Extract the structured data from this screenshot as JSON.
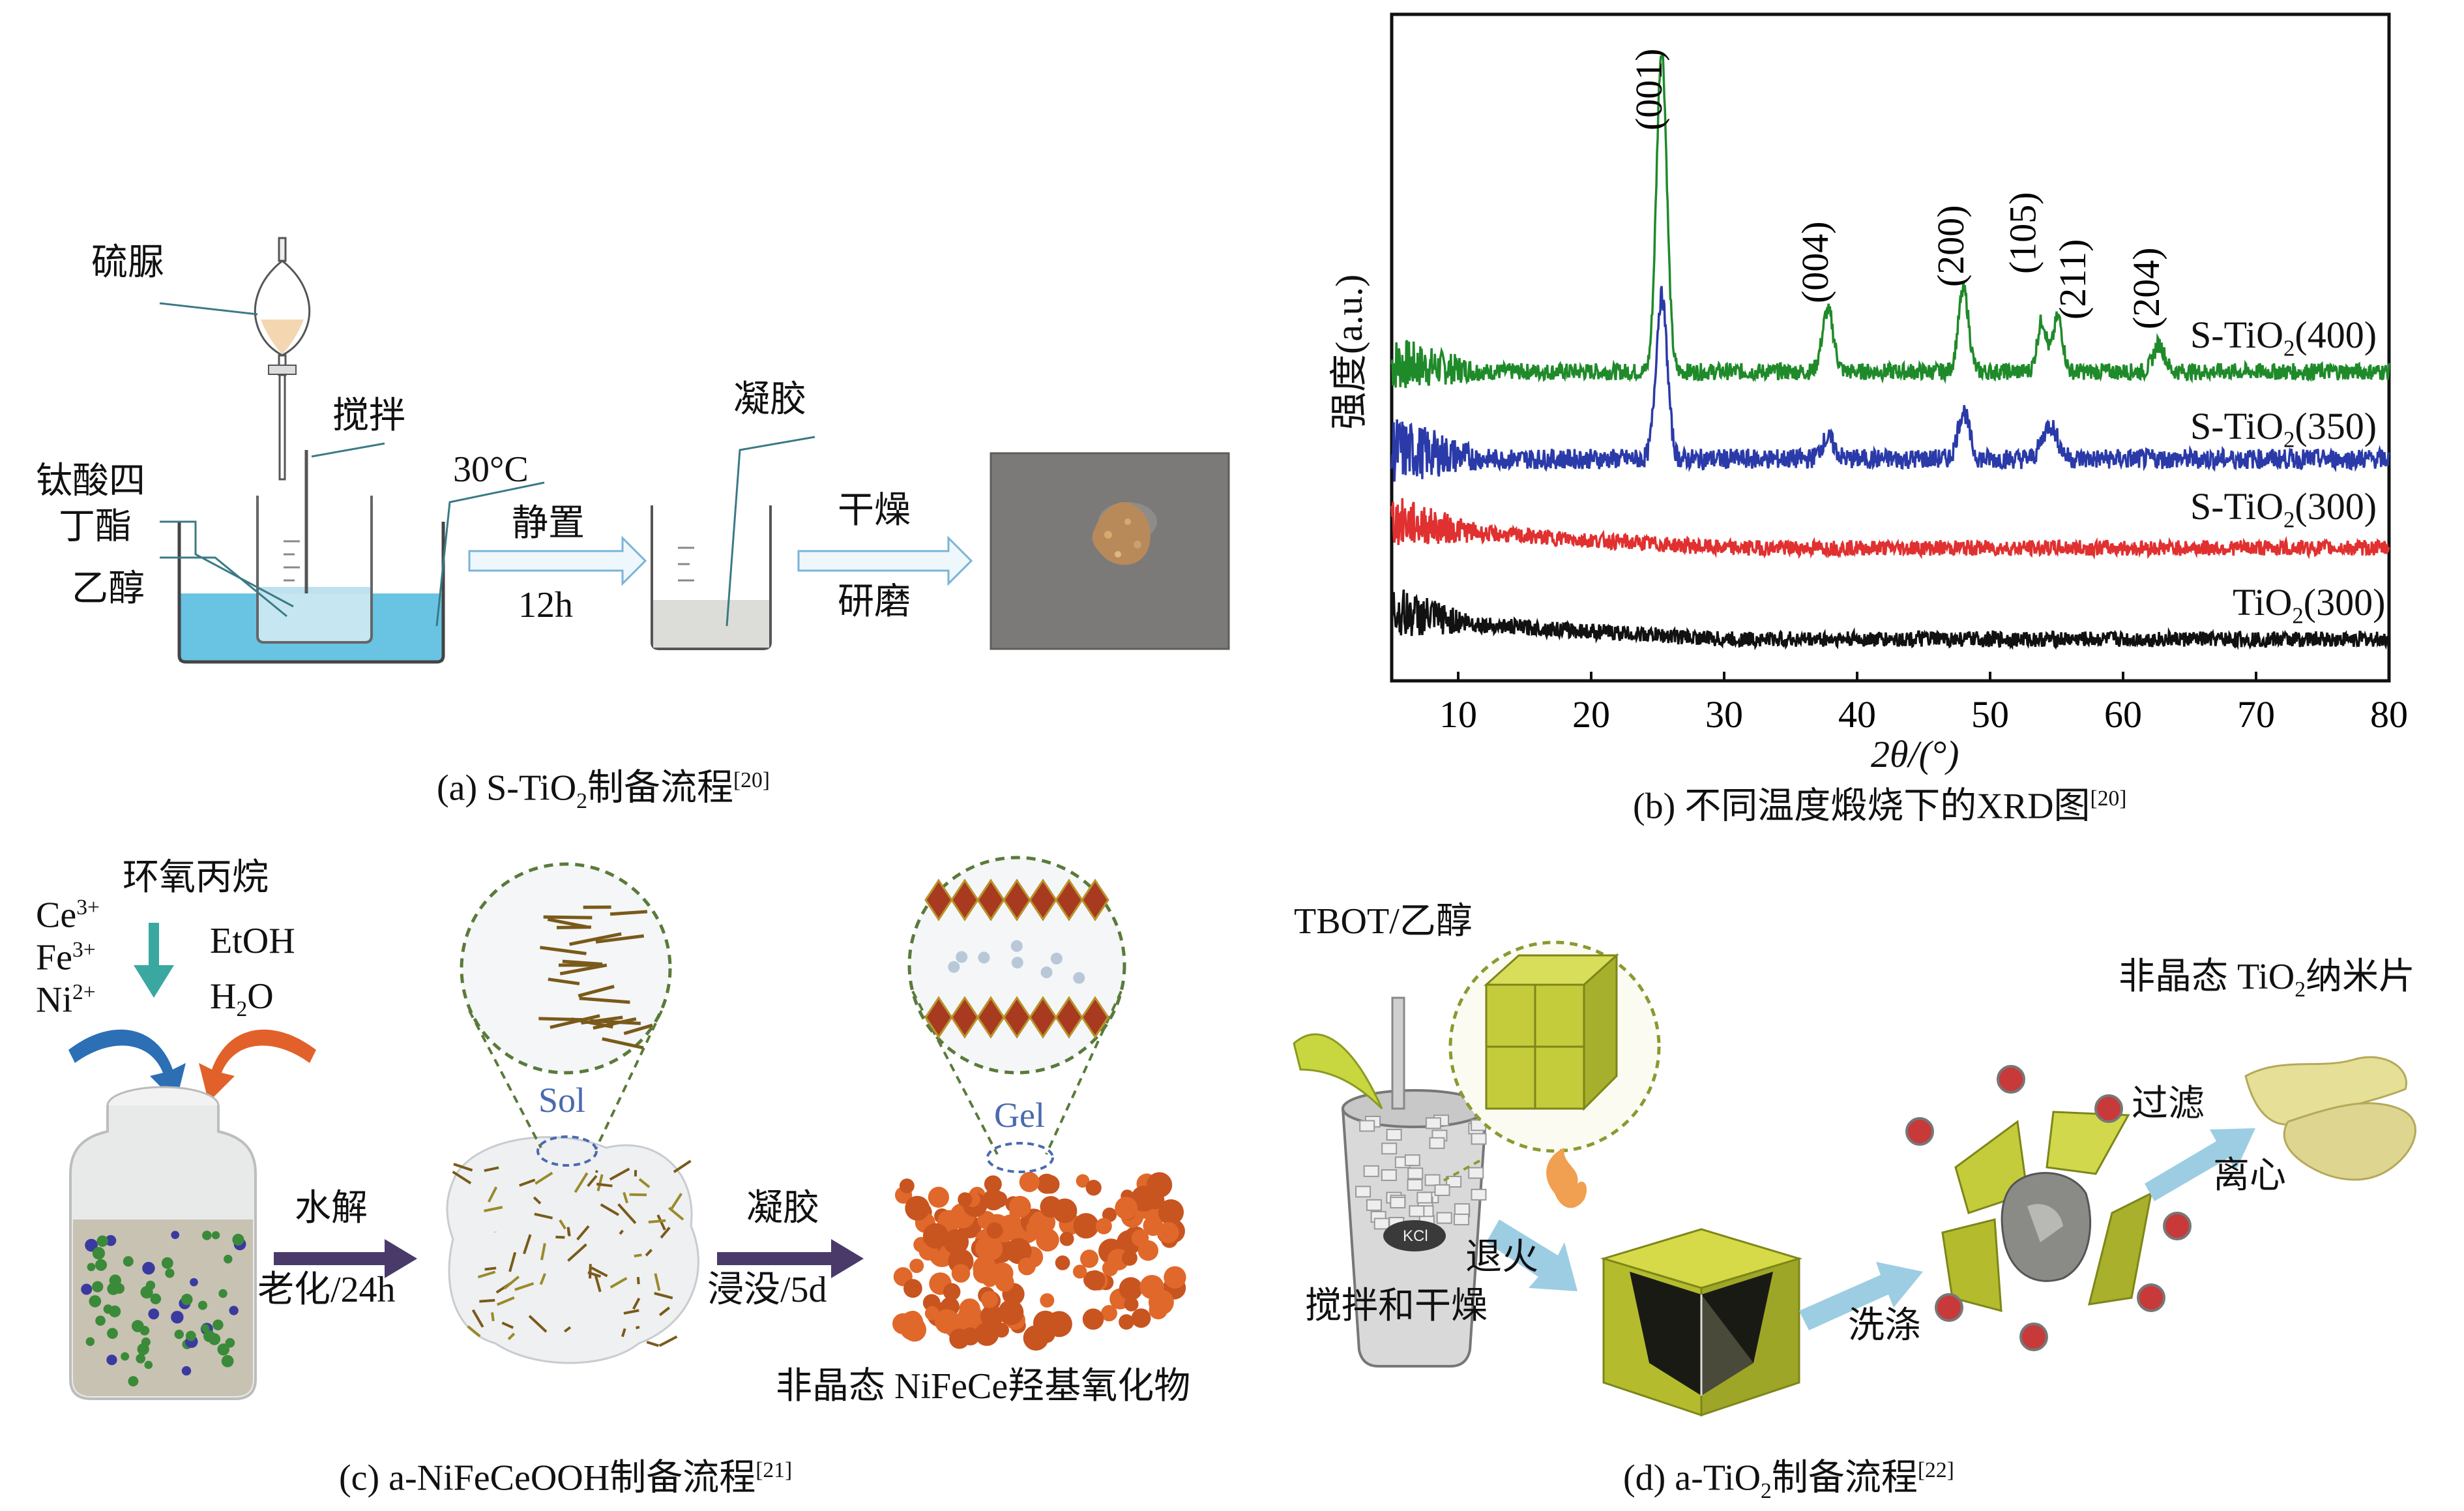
{
  "panel_a": {
    "caption_prefix": "(a) S-TiO",
    "caption_sub": "2",
    "caption_suffix": "制备流程",
    "caption_ref": "[20]",
    "labels": {
      "thiourea": "硫脲",
      "stir": "搅拌",
      "tbot_1": "钛酸四",
      "tbot_2": "丁酯",
      "ethanol": "乙醇",
      "temperature": "30°C",
      "rest": "静置",
      "rest_time": "12h",
      "gel": "凝胶",
      "dry": "干燥",
      "grind": "研磨"
    }
  },
  "panel_b": {
    "caption_prefix": "(b) 不同温度煅烧下的XRD图",
    "caption_ref": "[20]",
    "chart_data": {
      "type": "line",
      "title": "",
      "xlabel": "2θ/(°)",
      "ylabel": "强度(a.u.)",
      "xlim": [
        5,
        80
      ],
      "xticks": [
        10,
        20,
        30,
        40,
        50,
        60,
        70,
        80
      ],
      "series": [
        {
          "name": "S-TiO2(400)",
          "label_main": "S-TiO",
          "label_sub": "2",
          "label_tail": "(400)",
          "color": "#1f8a2a",
          "peaks": [
            {
              "x": 25.3,
              "h": 0.95,
              "w": 0.55
            },
            {
              "x": 37.8,
              "h": 0.18,
              "w": 0.6
            },
            {
              "x": 48.0,
              "h": 0.24,
              "w": 0.55
            },
            {
              "x": 53.9,
              "h": 0.15,
              "w": 0.5
            },
            {
              "x": 55.1,
              "h": 0.16,
              "w": 0.5
            },
            {
              "x": 62.7,
              "h": 0.08,
              "w": 0.6
            }
          ],
          "noise": 0.05
        },
        {
          "name": "S-TiO2(350)",
          "label_main": "S-TiO",
          "label_sub": "2",
          "label_tail": "(350)",
          "color": "#2a3aa8",
          "peaks": [
            {
              "x": 25.3,
              "h": 0.48,
              "w": 0.6
            },
            {
              "x": 37.8,
              "h": 0.06,
              "w": 0.7
            },
            {
              "x": 48.0,
              "h": 0.14,
              "w": 0.6
            },
            {
              "x": 54.5,
              "h": 0.1,
              "w": 0.8
            }
          ],
          "noise": 0.06
        },
        {
          "name": "S-TiO2(300)",
          "label_main": "S-TiO",
          "label_sub": "2",
          "label_tail": "(300)",
          "color": "#e03030",
          "peaks": [],
          "noise": 0.08
        },
        {
          "name": "TiO2(300)",
          "label_main": "TiO",
          "label_sub": "2",
          "label_tail": "(300)",
          "color": "#111111",
          "peaks": [],
          "noise": 0.08
        }
      ],
      "annotations": [
        {
          "text": "(001)",
          "x": 25.3
        },
        {
          "text": "(004)",
          "x": 37.8
        },
        {
          "text": "(200)",
          "x": 48.0
        },
        {
          "text": "(105)",
          "x": 53.9
        },
        {
          "text": "(211)",
          "x": 55.1
        },
        {
          "text": "(204)",
          "x": 62.7
        }
      ]
    }
  },
  "panel_c": {
    "caption_prefix": "(c) a-NiFeCeOOH制备流程",
    "caption_ref": "[21]",
    "labels": {
      "propylene_oxide": "环氧丙烷",
      "ce": "Ce",
      "ce_sup": "3+",
      "fe": "Fe",
      "fe_sup": "3+",
      "ni": "Ni",
      "ni_sup": "2+",
      "etoh": "EtOH",
      "h2o_main": "H",
      "h2o_sub": "2",
      "h2o_tail": "O",
      "hydrolysis": "水解",
      "aging": "老化/24h",
      "sol": "Sol",
      "gelation": "凝胶",
      "immersion": "浸没/5d",
      "gel": "Gel",
      "product": "非晶态 NiFeCe羟基氧化物"
    }
  },
  "panel_d": {
    "caption_prefix": "(d) a-TiO",
    "caption_sub": "2",
    "caption_suffix": "制备流程",
    "caption_ref": "[22]",
    "labels": {
      "tbot_ethanol": "TBOT/乙醇",
      "kcl": "KCl",
      "stir_dry": "搅拌和干燥",
      "anneal": "退火",
      "wash": "洗涤",
      "filter": "过滤",
      "centrifuge": "离心",
      "product_main": "非晶态 TiO",
      "product_sub": "2",
      "product_tail": "纳米片"
    }
  }
}
